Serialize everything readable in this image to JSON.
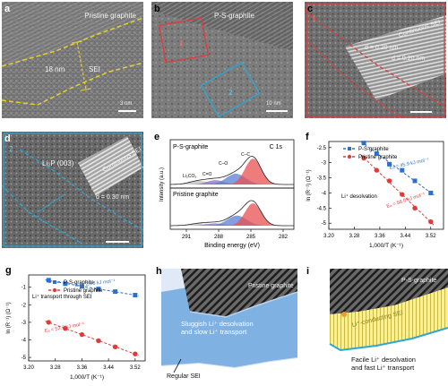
{
  "panels": {
    "a": {
      "label": "a",
      "title": "Pristine graphite",
      "sei_thickness": "18 nm",
      "sei_label": "SEI",
      "scale": "3 nm"
    },
    "b": {
      "label": "b",
      "title": "P-S-graphite",
      "box1": "1",
      "box2": "2",
      "scale": "10 nm"
    },
    "c": {
      "label": "c",
      "box": "1",
      "layer_label": "Continuous SEI",
      "d1": "d = 0.20 nm",
      "d2": "d = 0.20 nm"
    },
    "d": {
      "label": "d",
      "box": "2",
      "phase": "Li₂P (003)",
      "layer_label": "Continuous SEI",
      "d": "d = 0.30 nm"
    },
    "e": {
      "label": "e"
    },
    "f": {
      "label": "f"
    },
    "g": {
      "label": "g"
    },
    "h": {
      "label": "h",
      "material": "Pristine graphite",
      "desc": [
        "Sluggish Li⁺ desolvation",
        "and slow Li⁺ transport"
      ],
      "sei": "Regular SEI"
    },
    "i": {
      "label": "i",
      "material": "P-S-graphite",
      "layer": "Li⁺-conducting SEI",
      "desc": [
        "Facile Li⁺ desolvation",
        "and fast Li⁺ transport"
      ]
    }
  },
  "colors": {
    "blue": "#2e6fc9",
    "red": "#df3b3b",
    "yellow": "#e6d12a",
    "cyan": "#2ea7d6",
    "pale_blue": "#7fb1e3",
    "pale_yellow": "#f7ef9c",
    "dark_gray": "#555555"
  },
  "chart_data": [
    {
      "type": "line",
      "panel": "e",
      "title_left": "P-S-graphite",
      "title_right": "C 1s",
      "bottom_title": "Pristine graphite",
      "xlabel": "Binding energy (eV)",
      "ylabel": "Intensity (a.u.)",
      "x_ticks": [
        291,
        288,
        285,
        282
      ],
      "xlim": [
        292.5,
        281
      ],
      "peak_labels_top": [
        "Li₂CO₃",
        "C=O",
        "C–O",
        "C–C"
      ],
      "peaks_top": [
        {
          "name": "Li₂CO₃",
          "center": 289.8,
          "height": 0.1,
          "width": 0.9,
          "color": "#c0c0c0"
        },
        {
          "name": "C=O",
          "center": 288.3,
          "height": 0.12,
          "width": 0.8,
          "color": "#8f6ac9"
        },
        {
          "name": "C–O",
          "center": 286.4,
          "height": 0.3,
          "width": 0.9,
          "color": "#5a7fd6"
        },
        {
          "name": "C–C",
          "center": 284.8,
          "height": 0.72,
          "width": 0.75,
          "color": "#e85050"
        }
      ],
      "peaks_bottom": [
        {
          "name": "Li₂CO₃",
          "center": 289.7,
          "height": 0.08,
          "width": 0.9,
          "color": "#c0c0c0"
        },
        {
          "name": "C=O",
          "center": 288.3,
          "height": 0.08,
          "width": 0.8,
          "color": "#8f6ac9"
        },
        {
          "name": "C–O",
          "center": 286.3,
          "height": 0.35,
          "width": 0.9,
          "color": "#5a7fd6"
        },
        {
          "name": "C–C",
          "center": 284.8,
          "height": 0.78,
          "width": 0.75,
          "color": "#e85050"
        }
      ]
    },
    {
      "type": "scatter",
      "panel": "f",
      "xlabel": "1,000/T (K⁻¹)",
      "ylabel": "ln (R⁻¹) (Ω⁻¹)",
      "xlim": [
        3.2,
        3.56
      ],
      "ylim": [
        -5.2,
        -2.3
      ],
      "x_ticks": [
        3.2,
        3.28,
        3.36,
        3.44,
        3.52
      ],
      "y_ticks": [
        -2.5,
        -3.0,
        -3.5,
        -4.0,
        -4.5,
        -5.0
      ],
      "annotation": "Li⁺ desolvation",
      "series": [
        {
          "name": "P-S-graphite",
          "marker": "square",
          "color": "#2e6fc9",
          "ea": "Eₐ = 45.9 kJ mol⁻¹",
          "x": [
            3.31,
            3.35,
            3.39,
            3.43,
            3.47,
            3.52
          ],
          "y": [
            -2.35,
            -2.7,
            -3.05,
            -3.25,
            -3.6,
            -4.0
          ]
        },
        {
          "name": "Pristine graphite",
          "marker": "circle",
          "color": "#df3b3b",
          "ea": "Eₐ = 58.0 kJ mol⁻¹",
          "x": [
            3.31,
            3.35,
            3.39,
            3.43,
            3.47,
            3.52
          ],
          "y": [
            -2.85,
            -3.25,
            -3.6,
            -4.05,
            -4.5,
            -4.95
          ]
        }
      ]
    },
    {
      "type": "scatter",
      "panel": "g",
      "xlabel": "1,000/T (K⁻¹)",
      "ylabel": "ln (R⁻¹) (Ω⁻¹)",
      "xlim": [
        3.2,
        3.55
      ],
      "ylim": [
        -5.2,
        -0.3
      ],
      "x_ticks": [
        3.2,
        3.28,
        3.36,
        3.44,
        3.52
      ],
      "y_ticks": [
        -1,
        -2,
        -3,
        -4,
        -5
      ],
      "annotation": "Li⁺ transport through SEI",
      "series": [
        {
          "name": "P-S-graphite",
          "marker": "square",
          "color": "#2e6fc9",
          "ea": "Eₐ = 25.8 kJ mol⁻¹",
          "x": [
            3.26,
            3.31,
            3.36,
            3.41,
            3.46,
            3.52
          ],
          "y": [
            -0.6,
            -0.8,
            -0.95,
            -1.1,
            -1.25,
            -1.45
          ]
        },
        {
          "name": "Pristine graphite",
          "marker": "circle",
          "color": "#df3b3b",
          "ea": "Eₐ = 52.7 kJ mol⁻¹",
          "x": [
            3.26,
            3.31,
            3.36,
            3.41,
            3.46,
            3.52
          ],
          "y": [
            -3.0,
            -3.35,
            -3.7,
            -4.05,
            -4.4,
            -4.8
          ]
        }
      ]
    }
  ]
}
